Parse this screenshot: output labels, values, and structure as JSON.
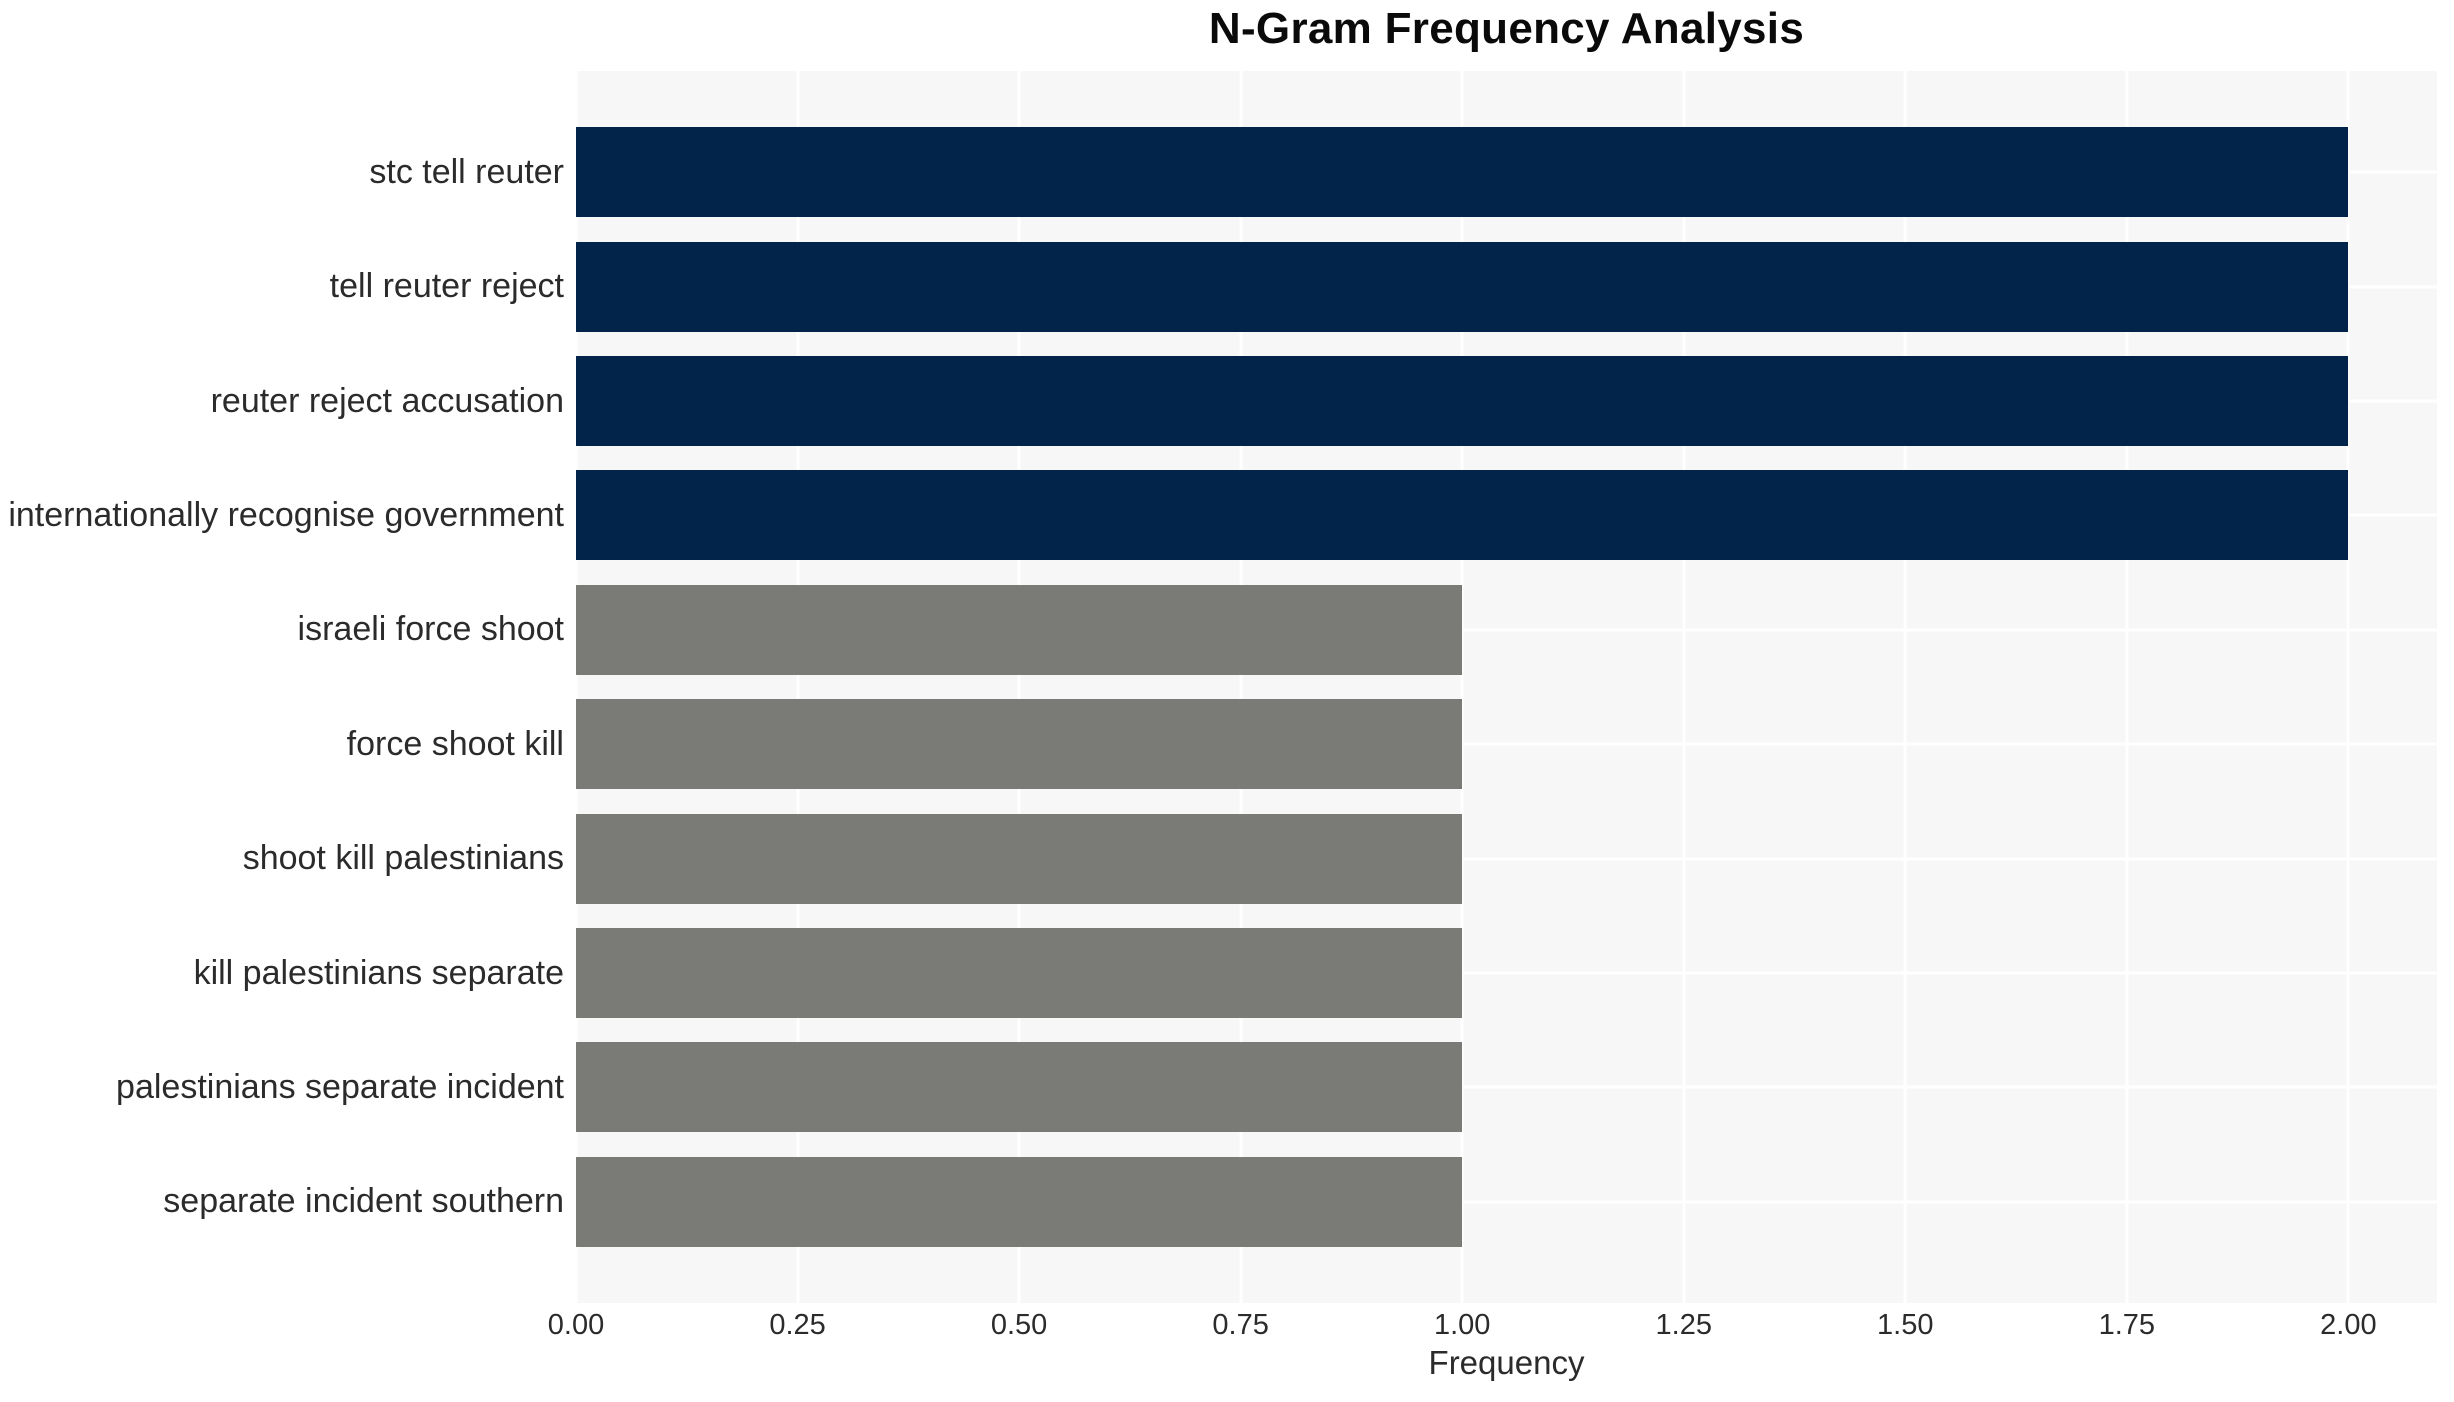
{
  "chart_data": {
    "type": "bar",
    "orientation": "horizontal",
    "title": "N-Gram Frequency Analysis",
    "xlabel": "Frequency",
    "ylabel": "",
    "categories": [
      "stc tell reuter",
      "tell reuter reject",
      "reuter reject accusation",
      "internationally recognise government",
      "israeli force shoot",
      "force shoot kill",
      "shoot kill palestinians",
      "kill palestinians separate",
      "palestinians separate incident",
      "separate incident southern"
    ],
    "values": [
      2,
      2,
      2,
      2,
      1,
      1,
      1,
      1,
      1,
      1
    ],
    "bar_colors": [
      "#02244a",
      "#02244a",
      "#02244a",
      "#02244a",
      "#7a7a76",
      "#7a7a76",
      "#7a7a76",
      "#7a7a76",
      "#7a7a76",
      "#7a7a76"
    ],
    "xticks": [
      {
        "label": "0.00",
        "value": 0.0
      },
      {
        "label": "0.25",
        "value": 0.25
      },
      {
        "label": "0.50",
        "value": 0.5
      },
      {
        "label": "0.75",
        "value": 0.75
      },
      {
        "label": "1.00",
        "value": 1.0
      },
      {
        "label": "1.25",
        "value": 1.25
      },
      {
        "label": "1.50",
        "value": 1.5
      },
      {
        "label": "1.75",
        "value": 1.75
      },
      {
        "label": "2.00",
        "value": 2.0
      }
    ],
    "xlim": [
      0,
      2.1
    ],
    "grid": "on",
    "legend": "none",
    "colors": {
      "high_frequency_bar": "#02244a",
      "low_frequency_bar": "#7a7a76",
      "plot_background": "#f7f7f8",
      "gridline": "#ffffff",
      "tick_text": "#2b2b2b",
      "title_text": "#0a0a0a"
    }
  }
}
